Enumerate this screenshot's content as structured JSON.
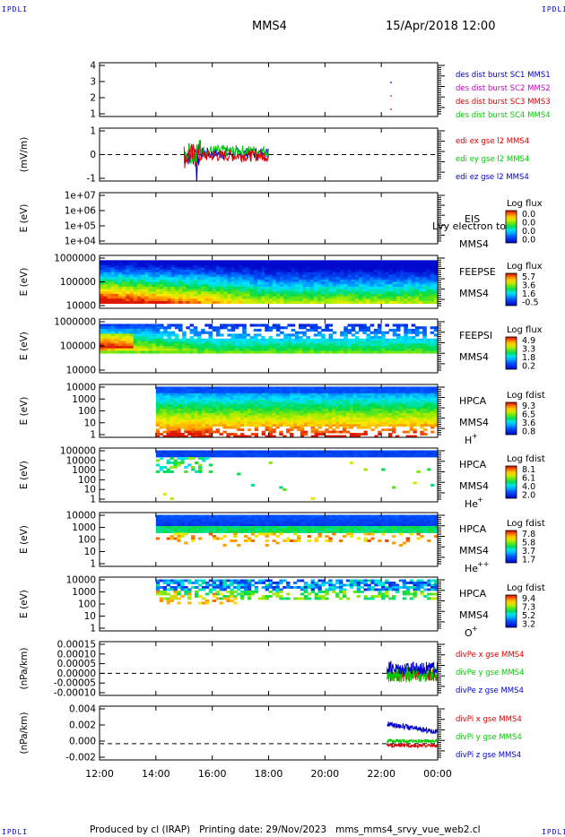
{
  "corner_label": "IPDLI",
  "header": {
    "spacecraft": "MMS4",
    "datetime": "15/Apr/2018 12:00"
  },
  "footer": "Produced by cl (IRAP)   Printing date: 29/Nov/2023   mms_mms4_srvy_vue_web2.cl",
  "colors": {
    "red": "#dd0000",
    "green": "#00cc00",
    "blue": "#0000cc",
    "magenta": "#cc00cc"
  },
  "chart_data": {
    "type": "multi-panel time series",
    "time_axis": {
      "ticks": [
        "12:00",
        "14:00",
        "16:00",
        "18:00",
        "20:00",
        "22:00",
        "00:00"
      ],
      "range_hours": [
        0,
        12
      ]
    },
    "panels": [
      {
        "id": "des",
        "type": "line",
        "y_ticks": [
          "4",
          "3",
          "2",
          "1"
        ],
        "legend": [
          {
            "text": "des dist burst SC1 MMS1",
            "color": "#0000cc"
          },
          {
            "text": "des dist burst SC2 MMS2",
            "color": "#cc00cc"
          },
          {
            "text": "des dist burst SC3 MMS3",
            "color": "#dd0000"
          },
          {
            "text": "des dist burst SC4 MMS4",
            "color": "#00cc00"
          }
        ]
      },
      {
        "id": "edi",
        "type": "line",
        "ylabel": "(mV/m)",
        "y_ticks": [
          "1",
          "0",
          "-1"
        ],
        "data_interval_hours": [
          3.0,
          6.0
        ],
        "legend": [
          {
            "text": "edi ex gse l2 MMS4",
            "color": "#dd0000"
          },
          {
            "text": "edi ey gse l2 MMS4",
            "color": "#00cc00"
          },
          {
            "text": "edi ez gse l2 MMS4",
            "color": "#0000cc"
          }
        ]
      },
      {
        "id": "eis",
        "type": "heatmap",
        "ylabel": "E (eV)",
        "y_ticks": [
          "1e+07",
          "1e+06",
          "1e+05",
          "1e+04"
        ],
        "label_lines": [
          "EIS",
          "MMS4"
        ],
        "overlay_text": "Lvy electron to",
        "colorbar": {
          "title": "Log flux",
          "ticks": [
            "0.0",
            "0.0",
            "0.0",
            "0.0"
          ]
        }
      },
      {
        "id": "feepse",
        "type": "heatmap",
        "ylabel": "E (eV)",
        "y_ticks": [
          "1000000",
          "100000",
          "10000"
        ],
        "label_lines": [
          "FEEPSE",
          "MMS4"
        ],
        "colorbar": {
          "title": "Log flux",
          "ticks": [
            "5.7",
            "3.6",
            "1.6",
            "-0.5"
          ]
        }
      },
      {
        "id": "feepsi",
        "type": "heatmap",
        "ylabel": "E (eV)",
        "y_ticks": [
          "1000000",
          "100000",
          "10000"
        ],
        "label_lines": [
          "FEEPSI",
          "MMS4"
        ],
        "colorbar": {
          "title": "Log flux",
          "ticks": [
            "4.9",
            "3.3",
            "1.8",
            "0.2"
          ]
        }
      },
      {
        "id": "hpca_h",
        "type": "heatmap",
        "ylabel": "E (eV)",
        "y_ticks": [
          "10000",
          "1000",
          "100",
          "10",
          "1"
        ],
        "label_lines": [
          "HPCA",
          "MMS4"
        ],
        "species": "H",
        "species_sup": "+",
        "colorbar": {
          "title": "Log fdist",
          "ticks": [
            "9.3",
            "6.5",
            "3.6",
            "0.8"
          ]
        },
        "data_start_hours": 2.0
      },
      {
        "id": "hpca_he1",
        "type": "heatmap",
        "ylabel": "E (eV)",
        "y_ticks": [
          "100000",
          "10000",
          "1000",
          "100",
          "10",
          "1"
        ],
        "label_lines": [
          "HPCA",
          "MMS4"
        ],
        "species": "He",
        "species_sup": "+",
        "colorbar": {
          "title": "Log fdist",
          "ticks": [
            "8.1",
            "6.1",
            "4.0",
            "2.0"
          ]
        },
        "data_start_hours": 2.0
      },
      {
        "id": "hpca_he2",
        "type": "heatmap",
        "ylabel": "E (eV)",
        "y_ticks": [
          "10000",
          "1000",
          "100",
          "10",
          "1"
        ],
        "label_lines": [
          "HPCA",
          "MMS4"
        ],
        "species": "He",
        "species_sup": "++",
        "colorbar": {
          "title": "Log fdist",
          "ticks": [
            "7.8",
            "5.8",
            "3.7",
            "1.7"
          ]
        },
        "data_start_hours": 2.0
      },
      {
        "id": "hpca_o",
        "type": "heatmap",
        "ylabel": "E (eV)",
        "y_ticks": [
          "10000",
          "1000",
          "100",
          "10",
          "1"
        ],
        "label_lines": [
          "HPCA",
          "MMS4"
        ],
        "species": "O",
        "species_sup": "+",
        "colorbar": {
          "title": "Log fdist",
          "ticks": [
            "9.4",
            "7.3",
            "5.2",
            "3.2"
          ]
        },
        "data_start_hours": 2.0
      },
      {
        "id": "divpe",
        "type": "line",
        "ylabel": "(nPa/km)",
        "y_ticks": [
          "0.00015",
          "0.00010",
          "0.00005",
          "0.00000",
          "-0.00005",
          "-0.00010"
        ],
        "data_interval_hours": [
          10.2,
          12.0
        ],
        "legend": [
          {
            "text": "divPe x gse MMS4",
            "color": "#dd0000"
          },
          {
            "text": "divPe y gse MMS4",
            "color": "#00cc00"
          },
          {
            "text": "divPe z gse MMS4",
            "color": "#0000cc"
          }
        ]
      },
      {
        "id": "divpi",
        "type": "line",
        "ylabel": "(nPa/km)",
        "y_ticks": [
          "0.004",
          "0.002",
          "0.000",
          "-0.002"
        ],
        "data_interval_hours": [
          10.2,
          12.0
        ],
        "legend": [
          {
            "text": "divPi x gse MMS4",
            "color": "#dd0000"
          },
          {
            "text": "divPi y gse MMS4",
            "color": "#00cc00"
          },
          {
            "text": "divPi z gse MMS4",
            "color": "#0000cc"
          }
        ]
      }
    ]
  }
}
